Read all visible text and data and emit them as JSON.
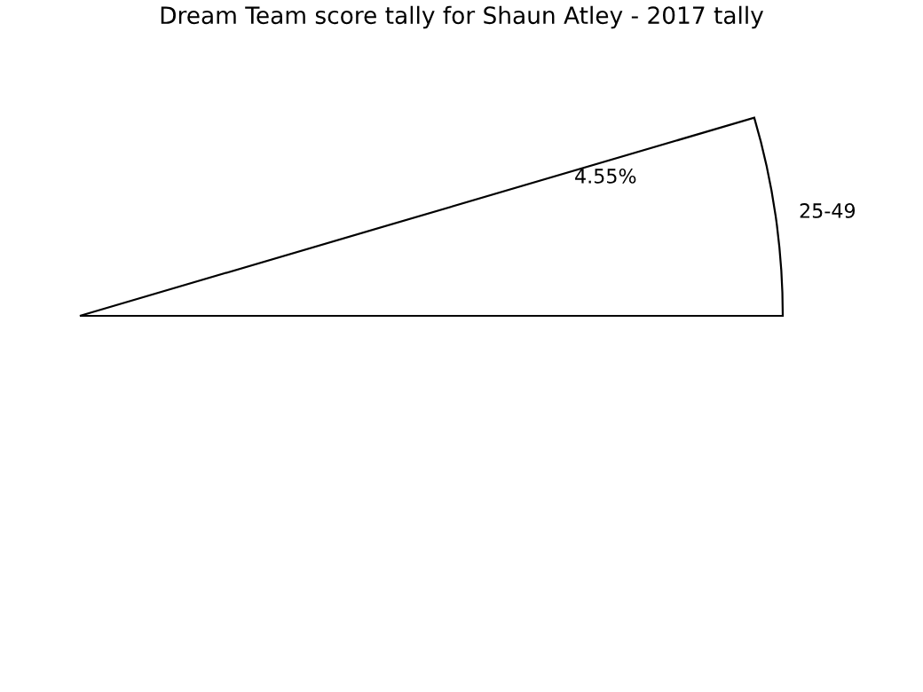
{
  "chart_data": {
    "type": "pie",
    "title": "Dream Team score tally for Shaun Atley - 2017 tally",
    "categories": [
      "25-49"
    ],
    "values": [
      4.55
    ],
    "value_labels": [
      "4.55%"
    ],
    "colors": [
      "#ffffff"
    ]
  }
}
